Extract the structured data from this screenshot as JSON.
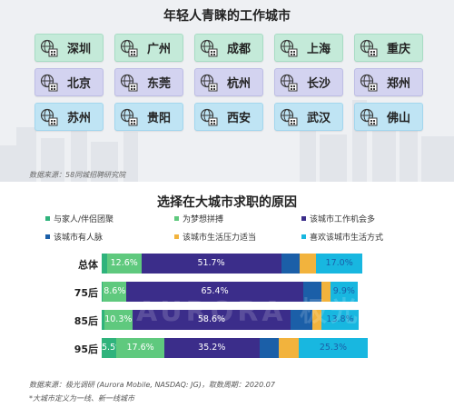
{
  "cities_section": {
    "title": "年轻人青睐的工作城市",
    "cities": [
      {
        "name": "深圳",
        "color": "#c4ead9"
      },
      {
        "name": "广州",
        "color": "#c4ead9"
      },
      {
        "name": "成都",
        "color": "#c4ead9"
      },
      {
        "name": "上海",
        "color": "#c4ead9"
      },
      {
        "name": "重庆",
        "color": "#c4ead9"
      },
      {
        "name": "北京",
        "color": "#d3d3f0"
      },
      {
        "name": "东莞",
        "color": "#d3d3f0"
      },
      {
        "name": "杭州",
        "color": "#d3d3f0"
      },
      {
        "name": "长沙",
        "color": "#d3d3f0"
      },
      {
        "name": "郑州",
        "color": "#d3d3f0"
      },
      {
        "name": "苏州",
        "color": "#bfe4f4"
      },
      {
        "name": "贵阳",
        "color": "#bfe4f4"
      },
      {
        "name": "西安",
        "color": "#bfe4f4"
      },
      {
        "name": "武汉",
        "color": "#bfe4f4"
      },
      {
        "name": "佛山",
        "color": "#bfe4f4"
      }
    ],
    "city_icon": "city-building-icon",
    "source": "数据来源：58同城招聘研究院"
  },
  "watermark": "AURORA 极光",
  "chart_data": {
    "type": "bar",
    "orientation": "horizontal",
    "stacked": true,
    "percent": true,
    "title": "选择在大城市求职的原因",
    "categories": [
      "总体",
      "75后",
      "85后",
      "95后"
    ],
    "series": [
      {
        "name": "与家人/伴侣团聚",
        "color": "#2fb37c",
        "values": [
          2.0,
          0.5,
          1.0,
          5.5
        ]
      },
      {
        "name": "为梦想拼搏",
        "color": "#5fc97e",
        "values": [
          12.6,
          8.6,
          10.3,
          17.6
        ]
      },
      {
        "name": "该城市工作机会多",
        "color": "#3b2d8a",
        "values": [
          51.7,
          65.4,
          58.6,
          35.2
        ]
      },
      {
        "name": "该城市有人脉",
        "color": "#1b5fa8",
        "values": [
          7.0,
          6.6,
          7.8,
          7.1
        ]
      },
      {
        "name": "该城市生活压力适当",
        "color": "#f2b33d",
        "values": [
          6.0,
          3.5,
          3.5,
          7.5
        ]
      },
      {
        "name": "喜欢该城市生活方式",
        "color": "#18b7e0",
        "values": [
          17.0,
          9.9,
          13.8,
          25.3
        ]
      }
    ],
    "data_labels": [
      [
        "",
        "12.6%",
        "51.7%",
        "",
        "",
        "17.0%"
      ],
      [
        "",
        "8.6%",
        "65.4%",
        "",
        "",
        "9.9%"
      ],
      [
        "",
        "10.3%",
        "58.6%",
        "",
        "",
        "13.8%"
      ],
      [
        "5.5%",
        "17.6%",
        "35.2%",
        "",
        "",
        "25.3%"
      ]
    ],
    "legend_position": "top",
    "xlim": [
      0,
      100
    ]
  },
  "chart_footer": {
    "source": "数据来源：极光调研 (Aurora Mobile, NASDAQ: JG)，取数周期：2020.07",
    "note": "*大城市定义为一线、新一线城市"
  }
}
